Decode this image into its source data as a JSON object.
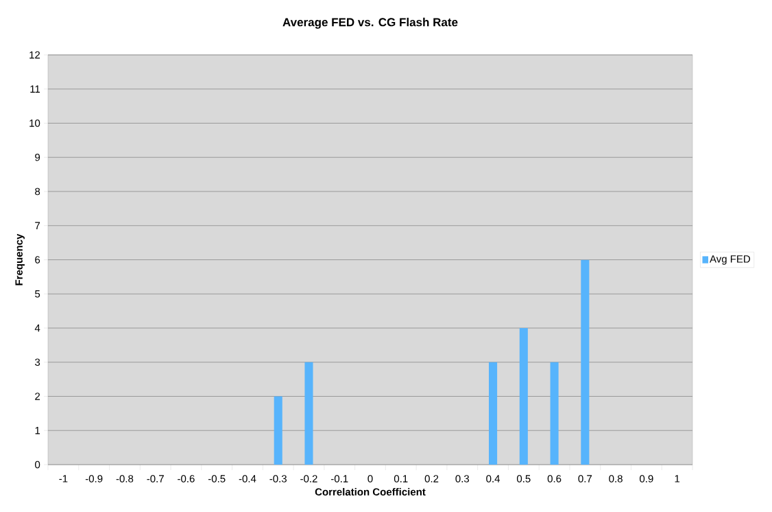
{
  "chart_data": {
    "type": "bar",
    "title": "Average FED vs. CG Flash Rate",
    "xlabel": "Correlation Coefficient",
    "ylabel": "Frequency",
    "categories": [
      "-1",
      "-0.9",
      "-0.8",
      "-0.7",
      "-0.6",
      "-0.5",
      "-0.4",
      "-0.3",
      "-0.2",
      "-0.1",
      "0",
      "0.1",
      "0.2",
      "0.3",
      "0.4",
      "0.5",
      "0.6",
      "0.7",
      "0.8",
      "0.9",
      "1"
    ],
    "series": [
      {
        "name": "Avg FED",
        "color": "#57b4fc",
        "values": [
          0,
          0,
          0,
          0,
          0,
          0,
          0,
          2,
          3,
          0,
          0,
          0,
          0,
          0,
          3,
          4,
          3,
          6,
          0,
          0,
          0
        ]
      }
    ],
    "ylim": [
      0,
      12
    ],
    "yticks": [
      0,
      1,
      2,
      3,
      4,
      5,
      6,
      7,
      8,
      9,
      10,
      11,
      12
    ],
    "grid": "y",
    "legend": "right"
  }
}
